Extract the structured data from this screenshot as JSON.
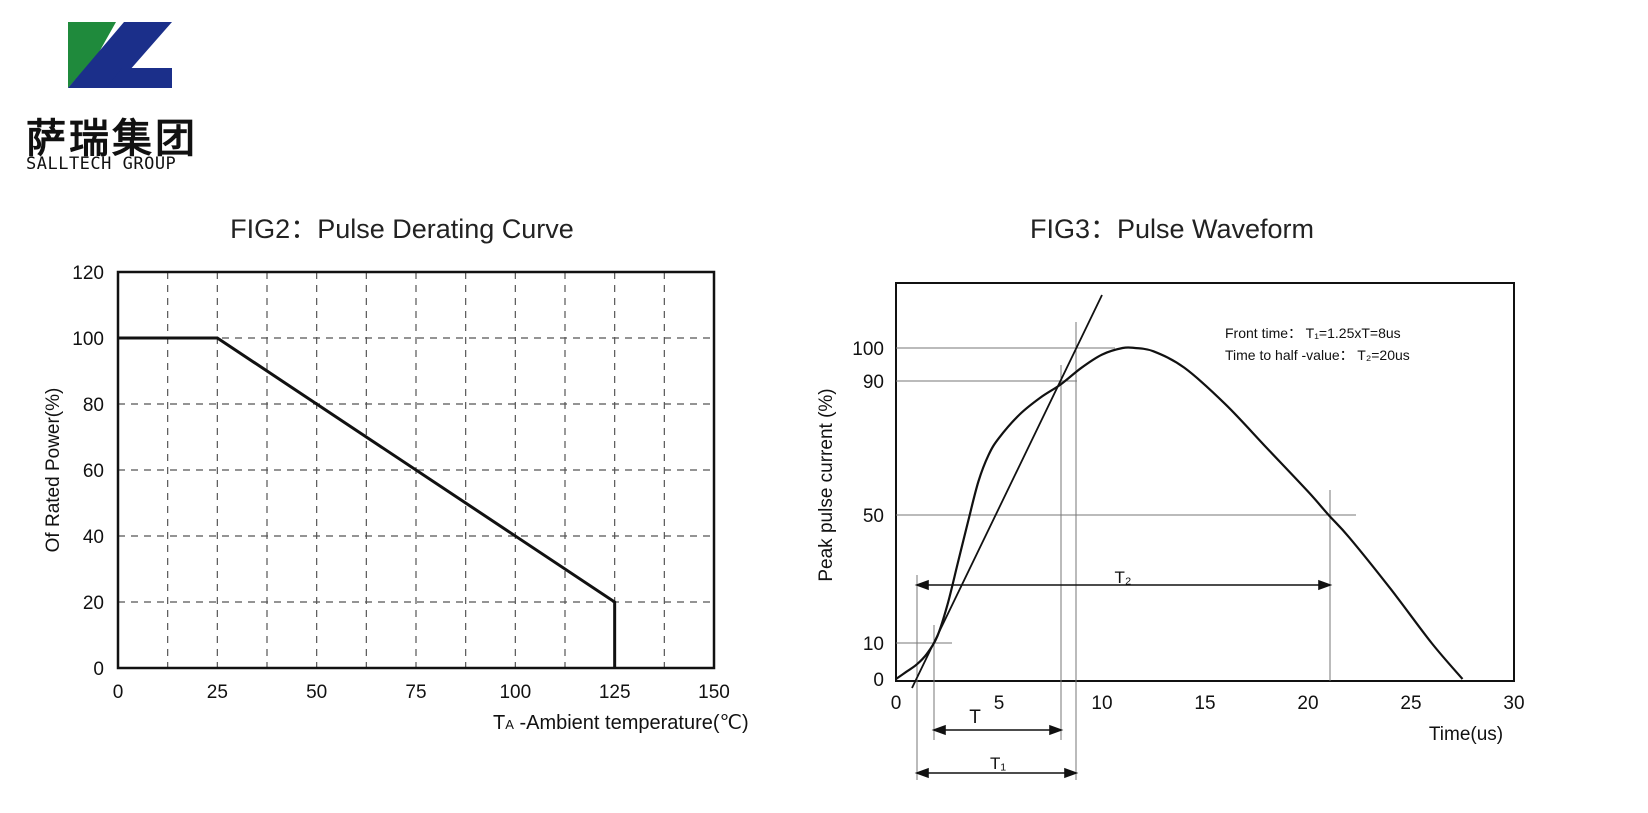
{
  "logo": {
    "name_cn": "萨瑞集团",
    "name_en": "SALLTECH GROUP",
    "colors": {
      "green": "#1f8a3c",
      "navy": "#1b2f8a"
    }
  },
  "chart_data": [
    {
      "type": "line",
      "title": "FIG2：Pulse Derating Curve",
      "xlabel_sub": "A",
      "xlabel_rest": " -Ambient temperature(℃)",
      "xlabel_main": "T",
      "ylabel": "Of Rated Power(%)",
      "xlim": [
        0,
        150
      ],
      "ylim": [
        0,
        120
      ],
      "xticks": [
        "0",
        "25",
        "50",
        "75",
        "100",
        "125",
        "150"
      ],
      "yticks": [
        "0",
        "20",
        "40",
        "60",
        "80",
        "100",
        "120"
      ],
      "grid": "dashed",
      "series": [
        {
          "x": [
            0,
            25,
            125,
            125
          ],
          "y": [
            100,
            100,
            20,
            0
          ]
        }
      ]
    },
    {
      "type": "line",
      "title": "FIG3：Pulse Waveform",
      "xlabel": "Time(us)",
      "ylabel": "Peak pulse current (%)",
      "xlim": [
        0,
        30
      ],
      "xticks": [
        "0",
        "5",
        "10",
        "15",
        "20",
        "25",
        "30"
      ],
      "yticks": [
        "0",
        "10",
        "50",
        "90",
        "100"
      ],
      "notes": [
        "Front time： T₁=1.25xT=8us",
        "Time to half -value： T₂=20us"
      ],
      "annotations": {
        "T": "T",
        "T1": "T₁",
        "T2": "T₂"
      },
      "series": [
        {
          "x": [
            0,
            0.5,
            1,
            1.5,
            2,
            2.5,
            3,
            3.5,
            4,
            4.5,
            5,
            6,
            7,
            8,
            9,
            10,
            11,
            11.6,
            12.5,
            14,
            16,
            18,
            20,
            21,
            22,
            24,
            26,
            27.5
          ],
          "y": [
            0,
            2,
            4,
            7,
            12,
            22,
            35,
            48,
            60,
            68,
            73,
            80,
            85,
            89,
            94,
            98,
            100,
            100,
            99,
            94,
            83,
            70,
            57,
            50,
            43,
            27,
            10,
            0
          ]
        }
      ]
    }
  ]
}
